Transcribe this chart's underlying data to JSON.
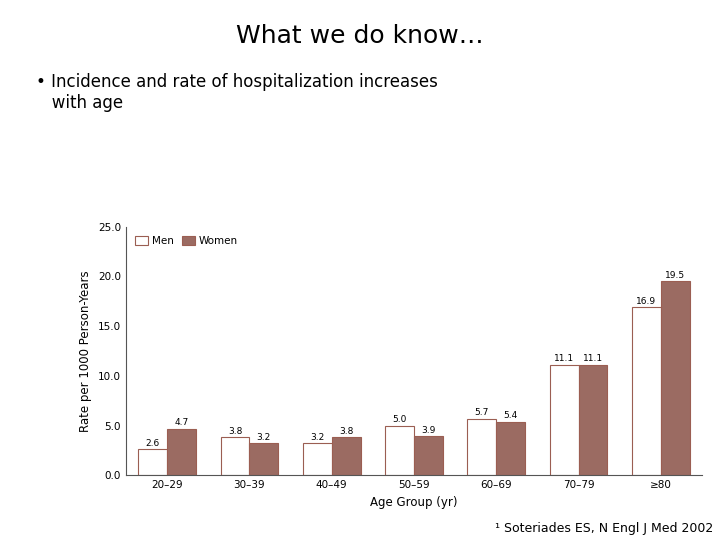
{
  "title": "What we do know…",
  "bullet": "• Incidence and rate of hospitalization increases\n   with age",
  "footnote": "¹ Soteriades ES, N Engl J Med 2002",
  "age_groups": [
    "20–29",
    "30–39",
    "40–49",
    "50–59",
    "60–69",
    "70–79",
    "≥80"
  ],
  "men_values": [
    2.6,
    3.8,
    3.2,
    5.0,
    5.7,
    11.1,
    16.9
  ],
  "women_values": [
    4.7,
    3.2,
    3.8,
    3.9,
    5.4,
    11.1,
    19.5
  ],
  "men_color": "#ffffff",
  "men_edgecolor": "#9b5e52",
  "women_color": "#9b6b62",
  "bar_edgecolor": "#9b5e52",
  "ylabel": "Rate per 1000 Person-Years",
  "xlabel": "Age Group (yr)",
  "ylim": [
    0,
    25.0
  ],
  "yticks": [
    0.0,
    5.0,
    10.0,
    15.0,
    20.0,
    25.0
  ],
  "legend_men": "Men",
  "legend_women": "Women",
  "bar_width": 0.35,
  "value_fontsize": 6.5,
  "axes_label_fontsize": 8.5,
  "tick_fontsize": 7.5,
  "legend_fontsize": 7.5,
  "title_fontsize": 18,
  "bullet_fontsize": 12,
  "footnote_fontsize": 9
}
